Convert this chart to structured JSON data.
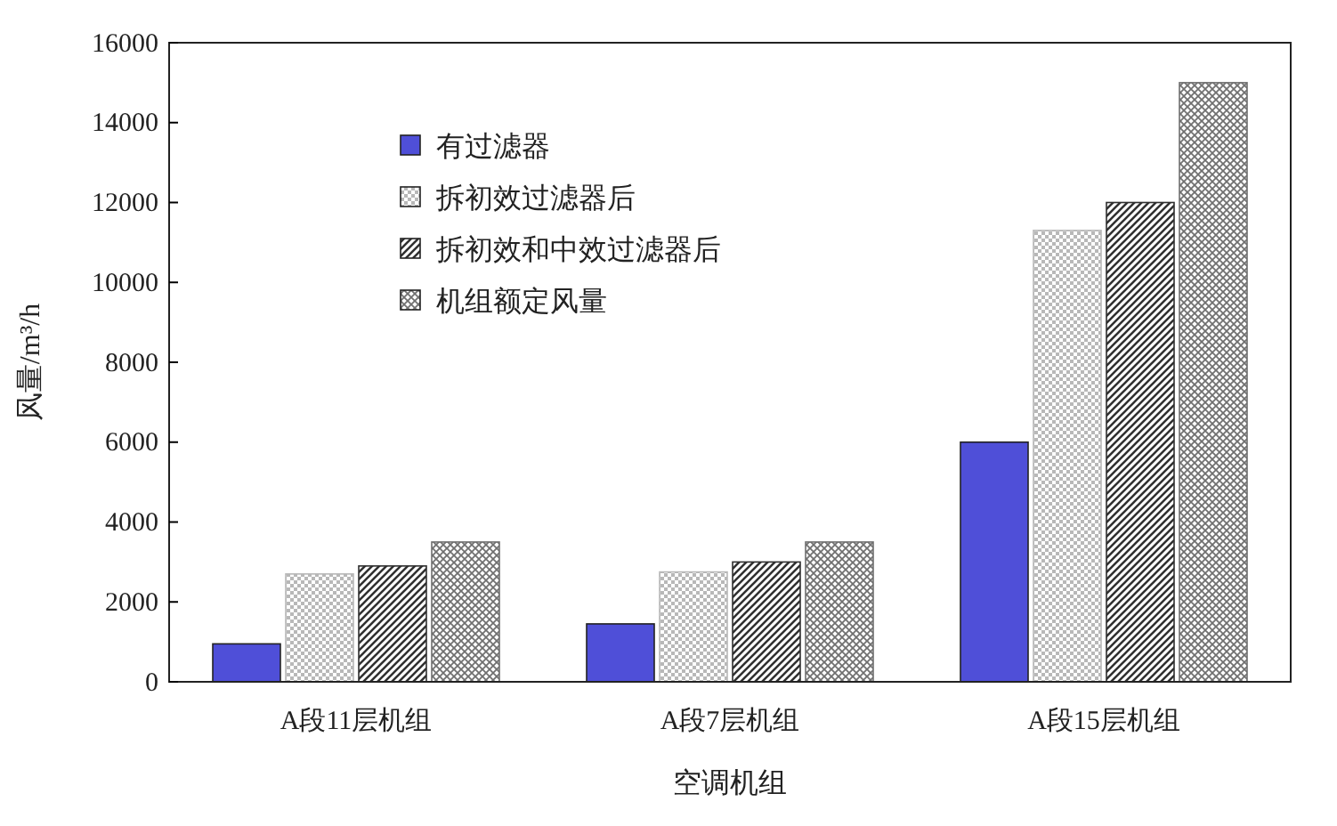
{
  "chart_data": {
    "type": "bar",
    "xlabel": "空调机组",
    "ylabel": "风量/m³/h",
    "categories": [
      "A段11层机组",
      "A段7层机组",
      "A段15层机组"
    ],
    "series": [
      {
        "name": "有过滤器",
        "color": "#4f4fd8",
        "values": [
          950,
          1450,
          6000
        ]
      },
      {
        "name": "拆初效过滤器后",
        "color": "#b8b8b8",
        "values": [
          2700,
          2750,
          11300
        ]
      },
      {
        "name": "拆初效和中效过滤器后",
        "color": "#303030",
        "values": [
          2900,
          3000,
          12000
        ]
      },
      {
        "name": "机组额定风量",
        "color": "#707070",
        "values": [
          3500,
          3500,
          15000
        ]
      }
    ],
    "ylim": [
      0,
      16000
    ],
    "yticks": [
      0,
      2000,
      4000,
      6000,
      8000,
      10000,
      12000,
      14000,
      16000
    ],
    "grid": false,
    "legend": "top left"
  }
}
